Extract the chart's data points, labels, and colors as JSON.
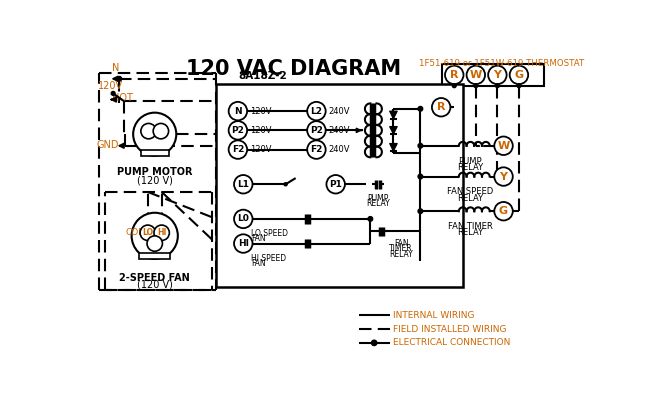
{
  "title": "120 VAC DIAGRAM",
  "title_fontsize": 15,
  "bg_color": "#ffffff",
  "black": "#000000",
  "orange": "#cc6600",
  "thermostat_label": "1F51-619 or 1F51W-619 THERMOSTAT",
  "control_box_label": "8A18Z-2",
  "rwyg": [
    "R",
    "W",
    "Y",
    "G"
  ],
  "input_left": [
    "N",
    "P2",
    "F2"
  ],
  "input_right": [
    "L2",
    "P2",
    "F2"
  ],
  "input_left_v": [
    "120V",
    "120V",
    "120V"
  ],
  "input_right_v": [
    "240V",
    "240V",
    "240V"
  ],
  "relay_terms": [
    "W",
    "Y",
    "G"
  ],
  "relay_labels_top": [
    "PUMP",
    "FAN SPEED",
    "FAN TIMER"
  ],
  "relay_labels_bot": [
    "RELAY",
    "RELAY",
    "RELAY"
  ],
  "legend": [
    "INTERNAL WIRING",
    "FIELD INSTALLED WIRING",
    "ELECTRICAL CONNECTION"
  ]
}
